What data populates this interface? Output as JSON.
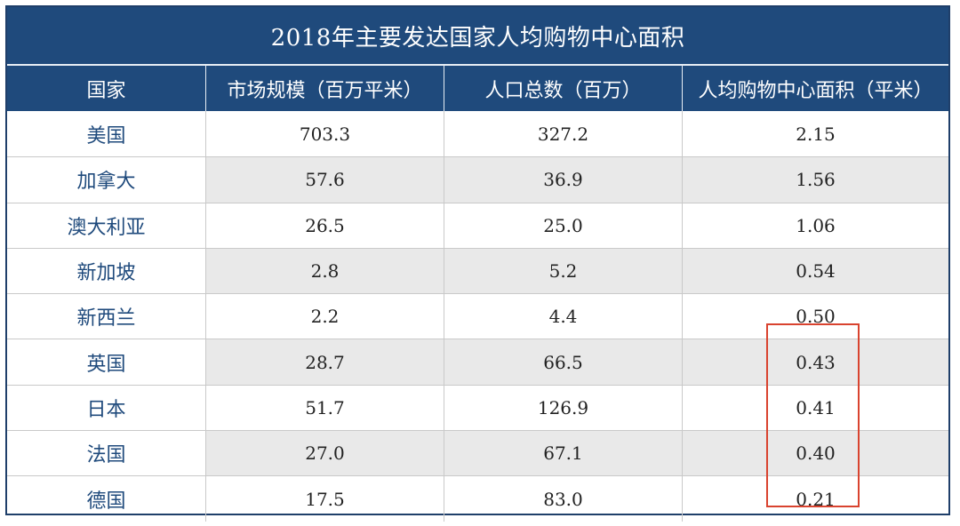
{
  "table": {
    "title": "2018年主要发达国家人均购物中心面积",
    "headers": [
      "国家",
      "市场规模（百万平米）",
      "人口总数（百万）",
      "人均购物中心面积（平米）"
    ],
    "rows": [
      {
        "country": "美国",
        "market": "703.3",
        "population": "327.2",
        "per_capita": "2.15"
      },
      {
        "country": "加拿大",
        "market": "57.6",
        "population": "36.9",
        "per_capita": "1.56"
      },
      {
        "country": "澳大利亚",
        "market": "26.5",
        "population": "25.0",
        "per_capita": "1.06"
      },
      {
        "country": "新加坡",
        "market": "2.8",
        "population": "5.2",
        "per_capita": "0.54"
      },
      {
        "country": "新西兰",
        "market": "2.2",
        "population": "4.4",
        "per_capita": "0.50"
      },
      {
        "country": "英国",
        "market": "28.7",
        "population": "66.5",
        "per_capita": "0.43"
      },
      {
        "country": "日本",
        "market": "51.7",
        "population": "126.9",
        "per_capita": "0.41"
      },
      {
        "country": "法国",
        "market": "27.0",
        "population": "67.1",
        "per_capita": "0.40"
      },
      {
        "country": "德国",
        "market": "17.5",
        "population": "83.0",
        "per_capita": "0.21"
      }
    ]
  },
  "colors": {
    "header_bg": "#1f4a7c",
    "country_text": "#1f4a7c",
    "alt_row_bg": "#e9e9e9",
    "highlight_border": "#d9432f"
  }
}
